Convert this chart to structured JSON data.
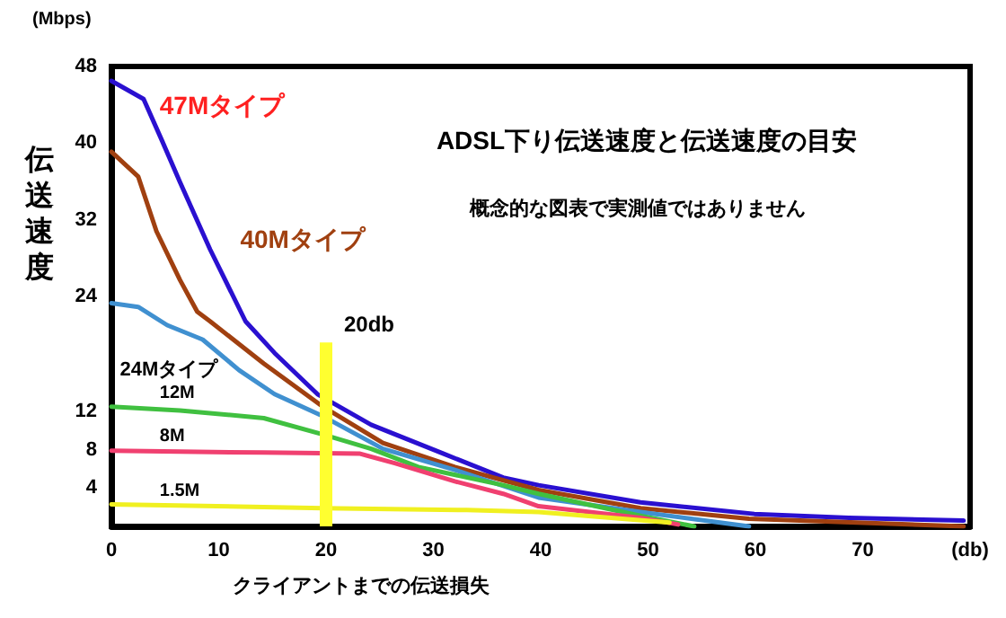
{
  "chart_data": {
    "type": "line",
    "title": "ADSL下り伝送速度と伝送速度の目安",
    "subtitle": "概念的な図表で実測値ではありません",
    "xlabel": "クライアントまでの伝送損失",
    "ylabel": "伝送速度",
    "annotations": [
      "(Mbps)"
    ],
    "ref_lines": [
      {
        "axis": "x",
        "value": 20,
        "label": "20db"
      }
    ],
    "xlim": [
      0,
      80
    ],
    "xticks": [
      0,
      10,
      20,
      30,
      40,
      50,
      60,
      70,
      {
        "value": 80,
        "label": "(db)"
      }
    ],
    "ylim": [
      0,
      48
    ],
    "yticks": [
      4,
      8,
      12,
      24,
      32,
      40,
      48
    ],
    "grid": false,
    "legend": false,
    "marker": "none",
    "line_style": "solid",
    "series": [
      {
        "name": "47Mタイプ",
        "color": "#2a10d0",
        "x": [
          0,
          3,
          4.7,
          6.4,
          9.2,
          12.5,
          15.2,
          19.2,
          24.2,
          30.9,
          36.5,
          39.8,
          49.3,
          59.9,
          68.7,
          79.4
        ],
        "values": [
          46.5,
          44.6,
          40.3,
          35.9,
          28.9,
          21.4,
          18.1,
          13.8,
          10.6,
          7.6,
          5.1,
          4.3,
          2.5,
          1.3,
          0.9,
          0.6
        ]
      },
      {
        "name": "40Mタイプ",
        "color": "#a04010",
        "x": [
          0,
          2.5,
          4.2,
          6.4,
          8,
          9.2,
          14.2,
          19.7,
          25.3,
          32,
          39.8,
          49.3,
          59.4,
          79.4
        ],
        "values": [
          39.1,
          36.5,
          30.8,
          25.7,
          22.4,
          21.4,
          17,
          12.5,
          8.7,
          6.2,
          3.8,
          1.9,
          0.8,
          0
        ]
      },
      {
        "name": "24Mタイプ",
        "color": "#4090d0",
        "x": [
          0,
          2.5,
          5.2,
          8.5,
          11.9,
          15.2,
          19.7,
          25.3,
          32,
          39.8,
          49.3,
          59.4
        ],
        "values": [
          23.3,
          22.9,
          21,
          19.5,
          16.3,
          13.8,
          11.5,
          8.1,
          5.9,
          3,
          1.5,
          0
        ]
      },
      {
        "name": "12M",
        "color": "#40c040",
        "x": [
          0,
          6.4,
          14.2,
          19.7,
          24.2,
          28.6,
          36.5,
          39.8,
          49.3,
          54.3
        ],
        "values": [
          12.5,
          12.1,
          11.3,
          9.6,
          8.1,
          6.2,
          4.3,
          3.4,
          1.1,
          0
        ]
      },
      {
        "name": "8M",
        "color": "#f04070",
        "x": [
          0,
          6.4,
          14.2,
          23.1,
          26.4,
          32,
          36.5,
          39.8,
          49.3,
          52.8
        ],
        "values": [
          7.9,
          7.8,
          7.7,
          7.6,
          6.6,
          4.7,
          3.4,
          2.1,
          0.9,
          0.2
        ]
      },
      {
        "name": "1.5M",
        "color": "#f0f020",
        "x": [
          0,
          19.7,
          33.1,
          39.8,
          52
        ],
        "values": [
          2.3,
          1.9,
          1.7,
          1.5,
          0.4
        ]
      }
    ]
  }
}
